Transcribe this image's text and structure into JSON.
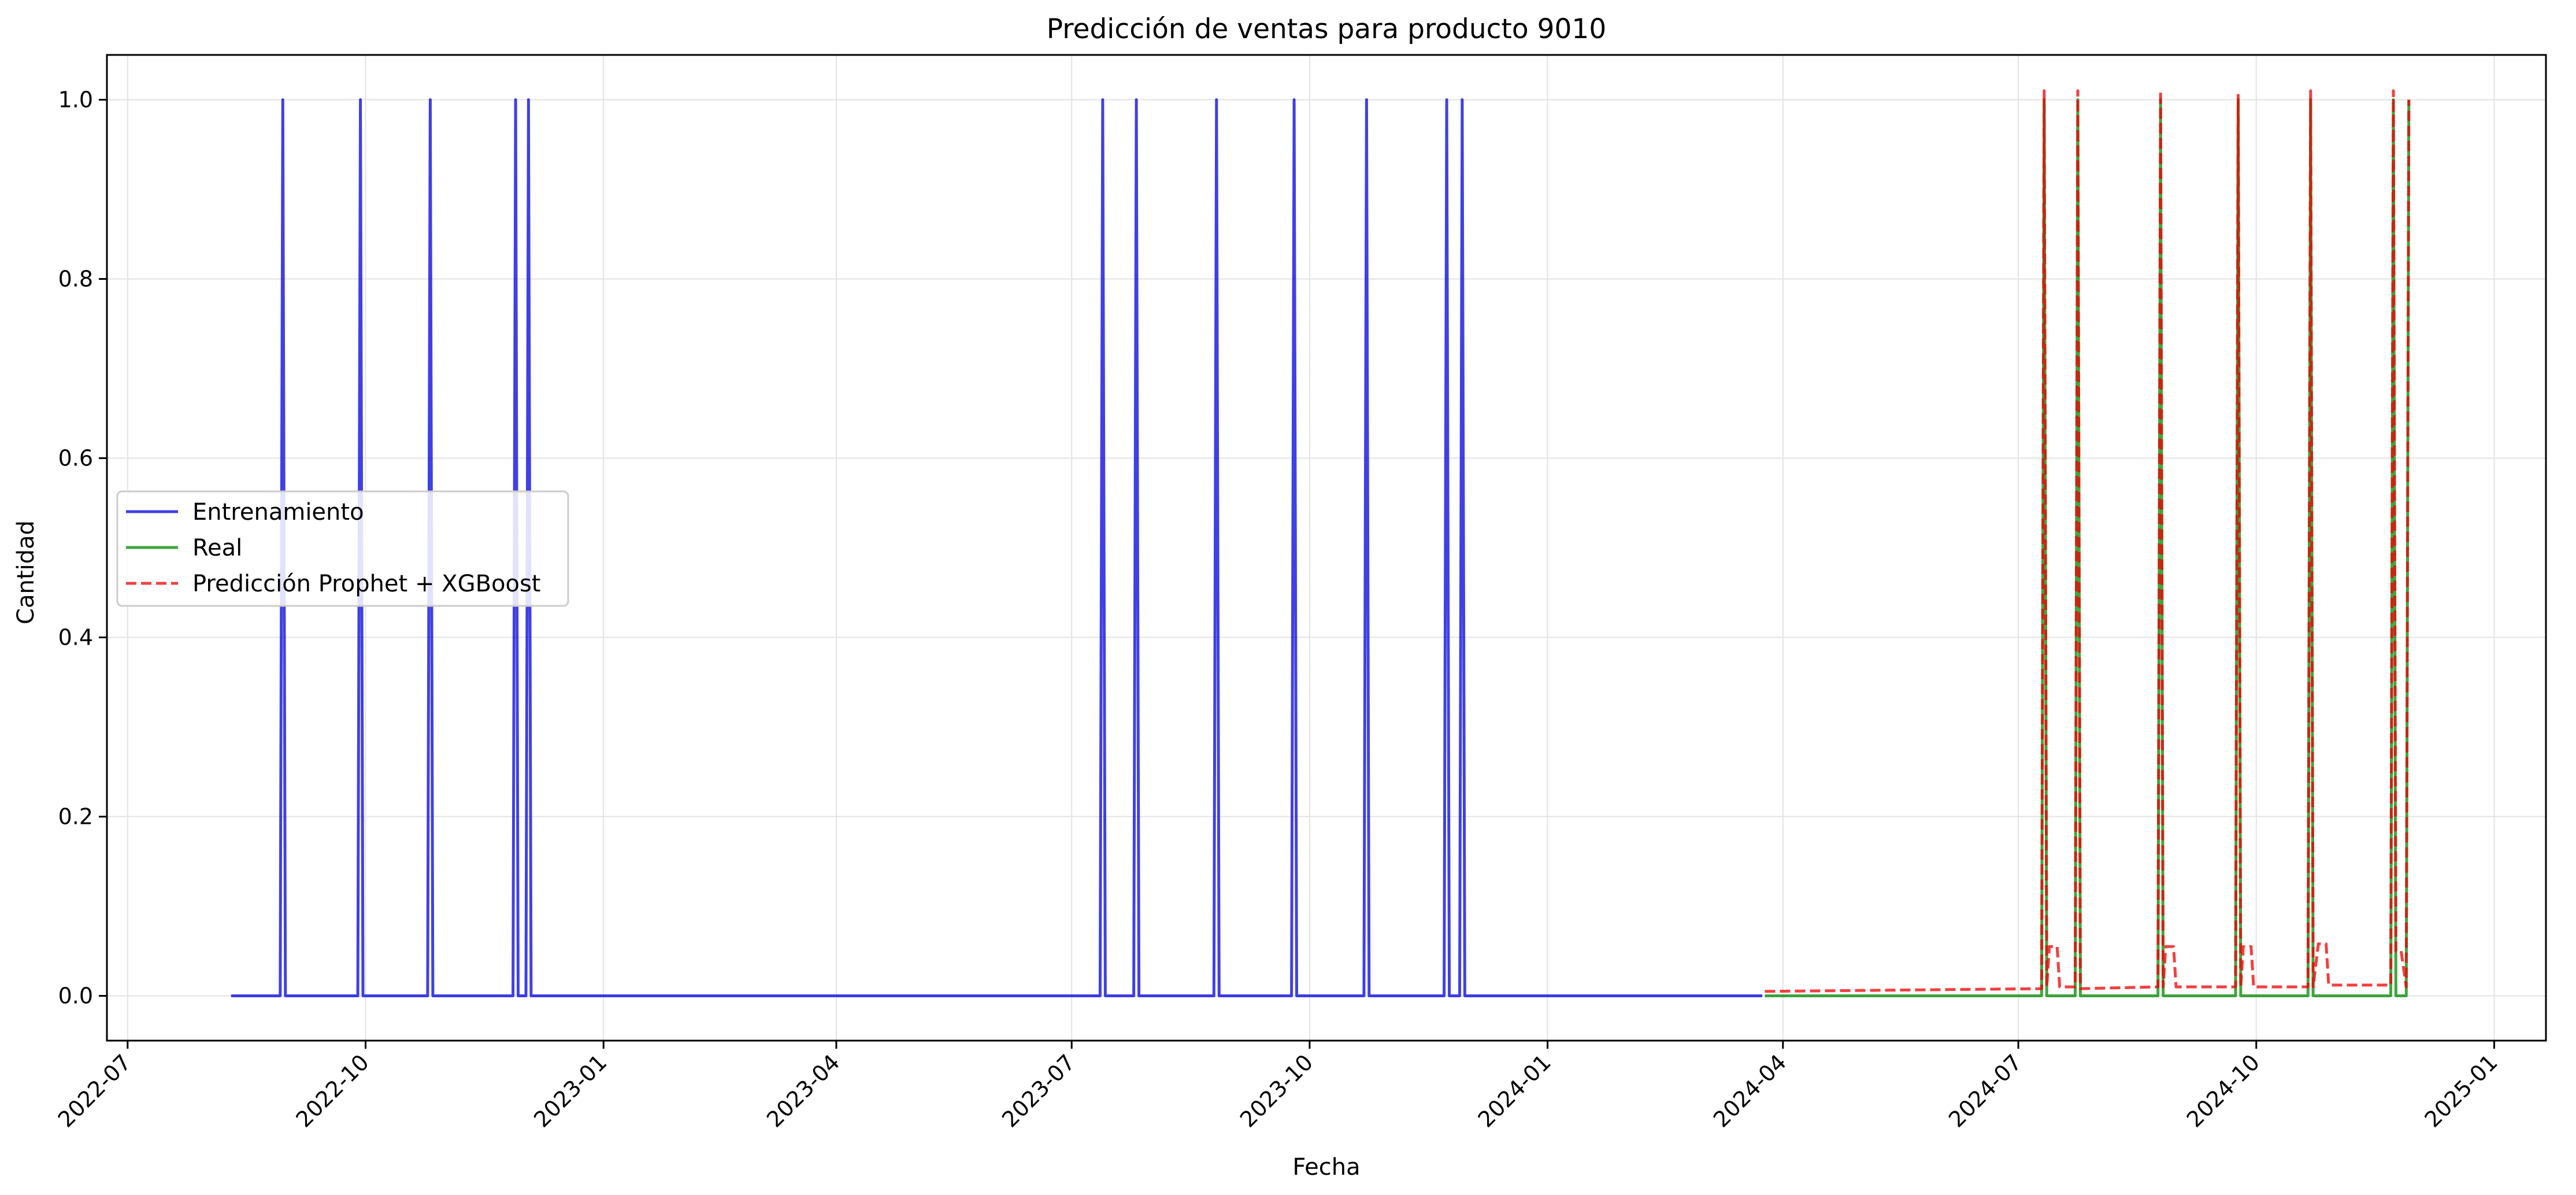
{
  "chart_data": {
    "type": "line",
    "title": "Predicción de ventas para producto 9010",
    "xlabel": "Fecha",
    "ylabel": "Cantidad",
    "x_axis_type": "date",
    "xlim": [
      "2022-06-23",
      "2025-01-21"
    ],
    "ylim": [
      -0.05,
      1.05
    ],
    "x_ticks": [
      "2022-07",
      "2022-10",
      "2023-01",
      "2023-04",
      "2023-07",
      "2023-10",
      "2024-01",
      "2024-04",
      "2024-07",
      "2024-10",
      "2025-01"
    ],
    "x_tick_dates": [
      "2022-07-01",
      "2022-10-01",
      "2023-01-01",
      "2023-04-01",
      "2023-07-01",
      "2023-10-01",
      "2024-01-01",
      "2024-04-01",
      "2024-07-01",
      "2024-10-01",
      "2025-01-01"
    ],
    "y_ticks": [
      "0.0",
      "0.2",
      "0.4",
      "0.6",
      "0.8",
      "1.0"
    ],
    "y_tick_values": [
      0,
      0.2,
      0.4,
      0.6,
      0.8,
      1.0
    ],
    "grid": true,
    "legend_position": "center-left",
    "series": [
      {
        "name": "Entrenamiento",
        "color": "#0000dd",
        "style": "solid",
        "points": [
          [
            "2022-08-10",
            0
          ],
          [
            "2022-08-29",
            0
          ],
          [
            "2022-08-30",
            1
          ],
          [
            "2022-08-31",
            0
          ],
          [
            "2022-09-28",
            0
          ],
          [
            "2022-09-29",
            1
          ],
          [
            "2022-09-30",
            0
          ],
          [
            "2022-10-25",
            0
          ],
          [
            "2022-10-26",
            1
          ],
          [
            "2022-10-27",
            0
          ],
          [
            "2022-11-27",
            0
          ],
          [
            "2022-11-28",
            1
          ],
          [
            "2022-11-29",
            0
          ],
          [
            "2022-12-02",
            0
          ],
          [
            "2022-12-03",
            1
          ],
          [
            "2022-12-04",
            0
          ],
          [
            "2023-07-12",
            0
          ],
          [
            "2023-07-13",
            1
          ],
          [
            "2023-07-14",
            0
          ],
          [
            "2023-07-25",
            0
          ],
          [
            "2023-07-26",
            1
          ],
          [
            "2023-07-27",
            0
          ],
          [
            "2023-08-25",
            0
          ],
          [
            "2023-08-26",
            1
          ],
          [
            "2023-08-27",
            0
          ],
          [
            "2023-09-24",
            0
          ],
          [
            "2023-09-25",
            1
          ],
          [
            "2023-09-26",
            0
          ],
          [
            "2023-10-22",
            0
          ],
          [
            "2023-10-23",
            1
          ],
          [
            "2023-10-24",
            0
          ],
          [
            "2023-11-22",
            0
          ],
          [
            "2023-11-23",
            1
          ],
          [
            "2023-11-24",
            0
          ],
          [
            "2023-11-28",
            0
          ],
          [
            "2023-11-29",
            1
          ],
          [
            "2023-11-30",
            0
          ],
          [
            "2024-03-24",
            0
          ]
        ]
      },
      {
        "name": "Real",
        "color": "#008800",
        "style": "solid",
        "points": [
          [
            "2024-03-25",
            0
          ],
          [
            "2024-07-10",
            0
          ],
          [
            "2024-07-11",
            1
          ],
          [
            "2024-07-12",
            0
          ],
          [
            "2024-07-23",
            0
          ],
          [
            "2024-07-24",
            1
          ],
          [
            "2024-07-25",
            0
          ],
          [
            "2024-08-24",
            0
          ],
          [
            "2024-08-25",
            1
          ],
          [
            "2024-08-26",
            0
          ],
          [
            "2024-09-23",
            0
          ],
          [
            "2024-09-24",
            1
          ],
          [
            "2024-09-25",
            0
          ],
          [
            "2024-10-21",
            0
          ],
          [
            "2024-10-22",
            1
          ],
          [
            "2024-10-23",
            0
          ],
          [
            "2024-11-22",
            0
          ],
          [
            "2024-11-23",
            1
          ],
          [
            "2024-11-24",
            0
          ],
          [
            "2024-11-28",
            0
          ],
          [
            "2024-11-29",
            1
          ]
        ]
      },
      {
        "name": "Predicción Prophet + XGBoost",
        "color": "#ee0000",
        "style": "dashed",
        "points": [
          [
            "2024-03-25",
            0.005
          ],
          [
            "2024-07-10",
            0.008
          ],
          [
            "2024-07-11",
            1.01
          ],
          [
            "2024-07-12",
            0.01
          ],
          [
            "2024-07-13",
            0.055
          ],
          [
            "2024-07-16",
            0.055
          ],
          [
            "2024-07-17",
            0.01
          ],
          [
            "2024-07-23",
            0.01
          ],
          [
            "2024-07-24",
            1.01
          ],
          [
            "2024-07-25",
            0.008
          ],
          [
            "2024-08-24",
            0.01
          ],
          [
            "2024-08-25",
            1.01
          ],
          [
            "2024-08-26",
            0.01
          ],
          [
            "2024-08-27",
            0.055
          ],
          [
            "2024-08-30",
            0.055
          ],
          [
            "2024-08-31",
            0.01
          ],
          [
            "2024-09-23",
            0.01
          ],
          [
            "2024-09-24",
            1.005
          ],
          [
            "2024-09-25",
            0.01
          ],
          [
            "2024-09-26",
            0.055
          ],
          [
            "2024-09-29",
            0.055
          ],
          [
            "2024-09-30",
            0.01
          ],
          [
            "2024-10-21",
            0.01
          ],
          [
            "2024-10-22",
            1.01
          ],
          [
            "2024-10-23",
            0.01
          ],
          [
            "2024-10-25",
            0.058
          ],
          [
            "2024-10-28",
            0.058
          ],
          [
            "2024-10-29",
            0.012
          ],
          [
            "2024-11-22",
            0.012
          ],
          [
            "2024-11-23",
            1.01
          ],
          [
            "2024-11-24",
            0.05
          ],
          [
            "2024-11-26",
            0.05
          ],
          [
            "2024-11-28",
            0.01
          ],
          [
            "2024-11-29",
            1.0
          ]
        ]
      }
    ]
  }
}
